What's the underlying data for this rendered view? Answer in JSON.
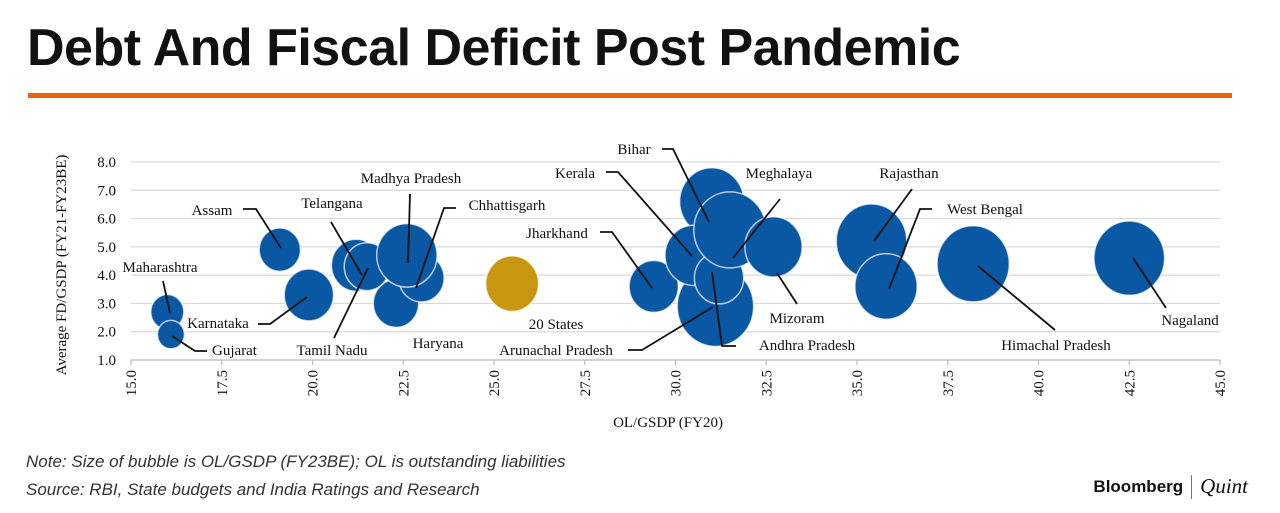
{
  "header": {
    "title": "Debt And Fiscal Deficit Post Pandemic"
  },
  "footer": {
    "note": "Note: Size of bubble is OL/GSDP (FY23BE); OL is outstanding liabilities",
    "source": "Source: RBI, State budgets and India Ratings and Research",
    "logo_left": "Bloomberg",
    "logo_right": "Quint"
  },
  "colors": {
    "accent": "#e8650f",
    "state_bubble": "#0a57a4",
    "aggregate_bubble": "#c9970f"
  },
  "chart_data": {
    "type": "bubble",
    "title": "Debt And Fiscal Deficit Post Pandemic",
    "xlabel": "OL/GSDP (FY20)",
    "ylabel": "Average FD/GSDP (FY21-FY23BE)",
    "size_label": "OL/GSDP (FY23BE)",
    "xlim": [
      15,
      45
    ],
    "ylim": [
      1,
      8
    ],
    "x_ticks": [
      "15.0",
      "17.5",
      "20.0",
      "22.5",
      "25.0",
      "27.5",
      "30.0",
      "32.5",
      "35.0",
      "37.5",
      "40.0",
      "42.5",
      "45.0"
    ],
    "y_ticks": [
      "1.0",
      "2.0",
      "3.0",
      "4.0",
      "5.0",
      "6.0",
      "7.0",
      "8.0"
    ],
    "grid": "horizontal",
    "points": [
      {
        "name": "Maharashtra",
        "x": 16.0,
        "y": 2.7,
        "size": 9
      },
      {
        "name": "Gujarat",
        "x": 16.1,
        "y": 1.9,
        "size": 6
      },
      {
        "name": "Assam",
        "x": 19.1,
        "y": 4.9,
        "size": 14
      },
      {
        "name": "Karnataka",
        "x": 19.9,
        "y": 3.3,
        "size": 20
      },
      {
        "name": "Haryana",
        "x": 22.3,
        "y": 3.0,
        "size": 17
      },
      {
        "name": "Chhattisgarh",
        "x": 23.0,
        "y": 3.9,
        "size": 17
      },
      {
        "name": "Telangana",
        "x": 21.2,
        "y": 4.35,
        "size": 20
      },
      {
        "name": "Tamil Nadu",
        "x": 21.5,
        "y": 4.3,
        "size": 17
      },
      {
        "name": "Madhya Pradesh",
        "x": 22.6,
        "y": 4.7,
        "size": 30
      },
      {
        "name": "20 States",
        "x": 25.5,
        "y": 3.7,
        "size": 23,
        "aggregate": true
      },
      {
        "name": "Jharkhand",
        "x": 29.4,
        "y": 3.6,
        "size": 20
      },
      {
        "name": "Bihar",
        "x": 31.0,
        "y": 6.6,
        "size": 34
      },
      {
        "name": "Arunachal Pradesh",
        "x": 31.1,
        "y": 2.9,
        "size": 48
      },
      {
        "name": "Kerala",
        "x": 30.5,
        "y": 4.7,
        "size": 27
      },
      {
        "name": "Andhra Pradesh",
        "x": 31.2,
        "y": 3.9,
        "size": 20
      },
      {
        "name": "Meghalaya",
        "x": 31.5,
        "y": 5.6,
        "size": 43
      },
      {
        "name": "Mizoram",
        "x": 32.7,
        "y": 5.0,
        "size": 27
      },
      {
        "name": "Rajasthan",
        "x": 35.4,
        "y": 5.2,
        "size": 41
      },
      {
        "name": "West Bengal",
        "x": 35.8,
        "y": 3.6,
        "size": 32
      },
      {
        "name": "Himachal Pradesh",
        "x": 38.2,
        "y": 4.4,
        "size": 43
      },
      {
        "name": "Nagaland",
        "x": 42.5,
        "y": 4.6,
        "size": 41
      }
    ]
  }
}
